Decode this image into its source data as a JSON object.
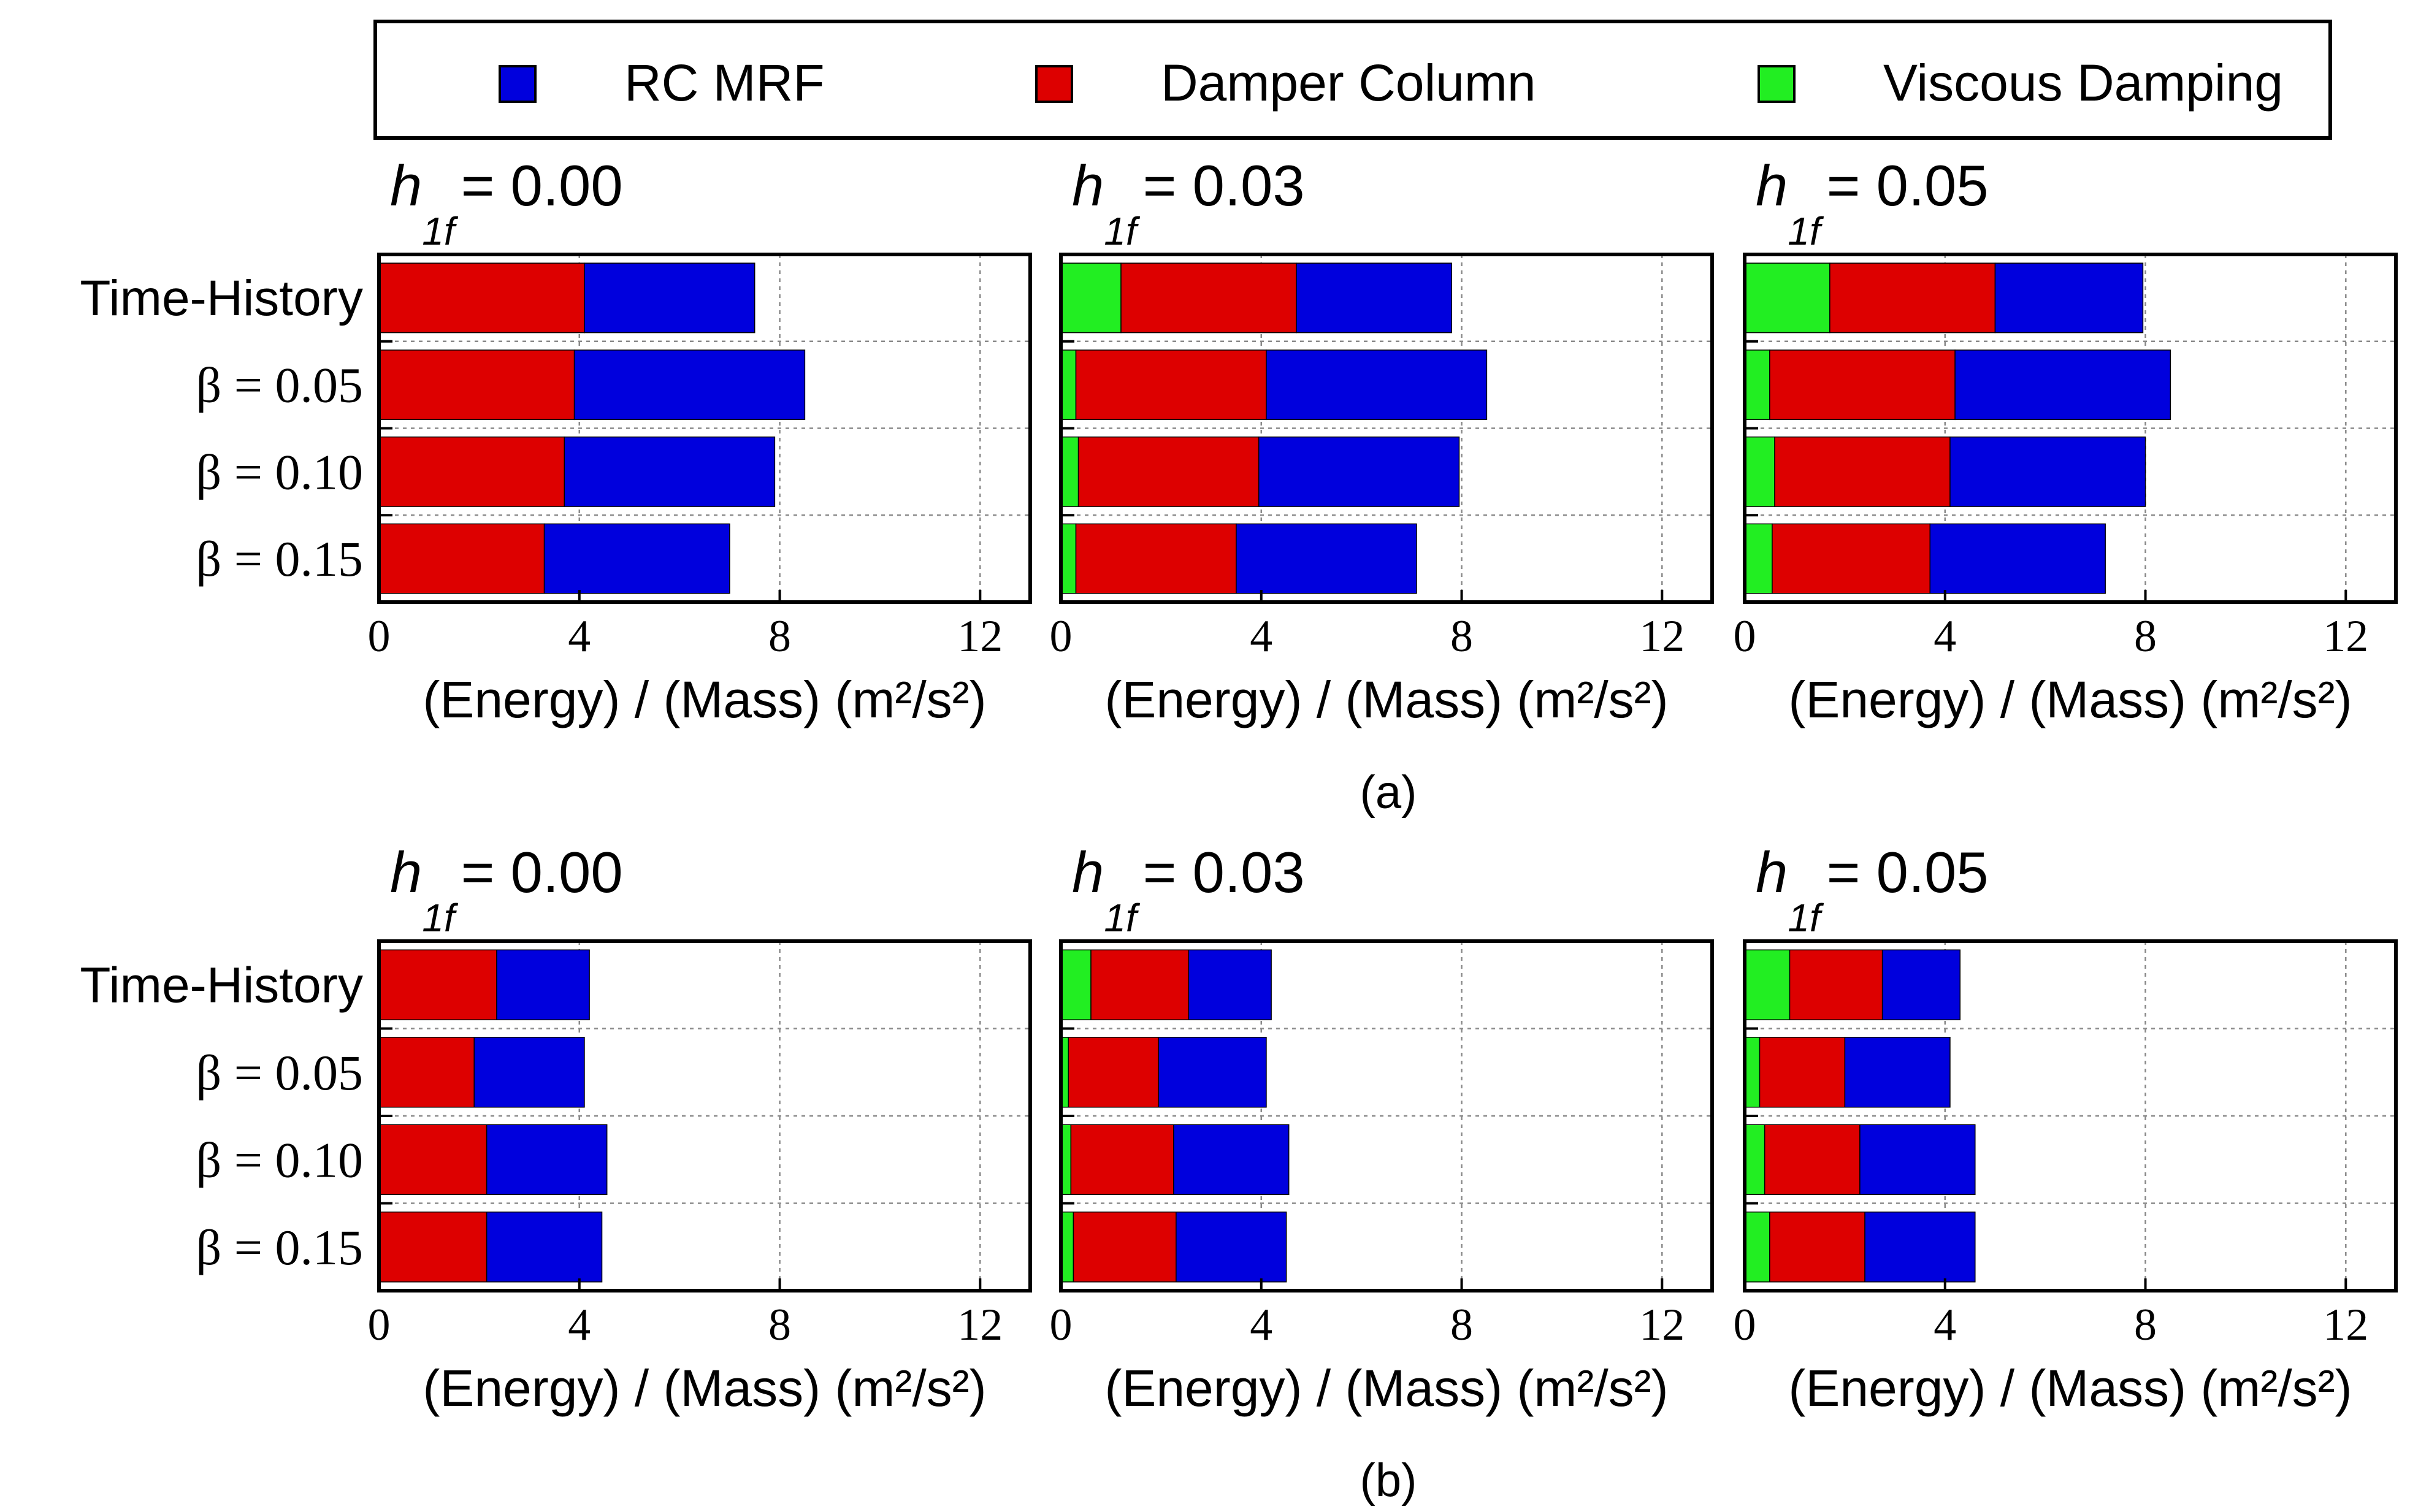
{
  "legend": {
    "items": [
      {
        "label": "RC MRF",
        "color": "#0000dd"
      },
      {
        "label": "Damper Column",
        "color": "#dd0000"
      },
      {
        "label": "Viscous Damping",
        "color": "#22ee22"
      }
    ]
  },
  "subfigures": [
    "(a)",
    "(b)"
  ],
  "chart_data": [
    {
      "type": "bar",
      "orientation": "horizontal",
      "stacked": true,
      "group": "(a)",
      "title": "h1f = 0.00",
      "title_symbol": "h",
      "title_subscript": "1f",
      "title_value": "= 0.00",
      "categories": [
        "Time-History",
        "β = 0.05",
        "β = 0.10",
        "β = 0.15"
      ],
      "series": [
        {
          "name": "Viscous Damping",
          "values": [
            0,
            0,
            0,
            0
          ]
        },
        {
          "name": "Damper Column",
          "values": [
            4.1,
            3.9,
            3.7,
            3.3
          ]
        },
        {
          "name": "RC MRF",
          "values": [
            3.4,
            4.6,
            4.2,
            3.7
          ]
        }
      ],
      "xlabel": "(Energy) / (Mass)",
      "xunit": "(m²/s²)",
      "xlim": [
        0,
        13
      ],
      "xticks": [
        "0",
        "4",
        "8",
        "12"
      ],
      "grid": true
    },
    {
      "type": "bar",
      "orientation": "horizontal",
      "stacked": true,
      "group": "(a)",
      "title": "h1f = 0.03",
      "title_symbol": "h",
      "title_subscript": "1f",
      "title_value": "= 0.03",
      "categories": [
        "Time-History",
        "β = 0.05",
        "β = 0.10",
        "β = 0.15"
      ],
      "series": [
        {
          "name": "Viscous Damping",
          "values": [
            1.2,
            0.3,
            0.35,
            0.3
          ]
        },
        {
          "name": "Damper Column",
          "values": [
            3.5,
            3.8,
            3.6,
            3.2
          ]
        },
        {
          "name": "RC MRF",
          "values": [
            3.1,
            4.4,
            4.0,
            3.6
          ]
        }
      ],
      "xlabel": "(Energy) / (Mass)",
      "xunit": "(m²/s²)",
      "xlim": [
        0,
        13
      ],
      "xticks": [
        "0",
        "4",
        "8",
        "12"
      ],
      "grid": true
    },
    {
      "type": "bar",
      "orientation": "horizontal",
      "stacked": true,
      "group": "(a)",
      "title": "h1f = 0.05",
      "title_symbol": "h",
      "title_subscript": "1f",
      "title_value": "= 0.05",
      "categories": [
        "Time-History",
        "β = 0.05",
        "β = 0.10",
        "β = 0.15"
      ],
      "series": [
        {
          "name": "Viscous Damping",
          "values": [
            1.7,
            0.5,
            0.6,
            0.55
          ]
        },
        {
          "name": "Damper Column",
          "values": [
            3.3,
            3.7,
            3.5,
            3.15
          ]
        },
        {
          "name": "RC MRF",
          "values": [
            2.95,
            4.3,
            3.9,
            3.5
          ]
        }
      ],
      "xlabel": "(Energy) / (Mass)",
      "xunit": "(m²/s²)",
      "xlim": [
        0,
        13
      ],
      "xticks": [
        "0",
        "4",
        "8",
        "12"
      ],
      "grid": true
    },
    {
      "type": "bar",
      "orientation": "horizontal",
      "stacked": true,
      "group": "(b)",
      "title": "h1f = 0.00",
      "title_symbol": "h",
      "title_subscript": "1f",
      "title_value": "= 0.00",
      "categories": [
        "Time-History",
        "β = 0.05",
        "β = 0.10",
        "β = 0.15"
      ],
      "series": [
        {
          "name": "Viscous Damping",
          "values": [
            0,
            0,
            0,
            0
          ]
        },
        {
          "name": "Damper Column",
          "values": [
            2.35,
            1.9,
            2.15,
            2.15
          ]
        },
        {
          "name": "RC MRF",
          "values": [
            1.85,
            2.2,
            2.4,
            2.3
          ]
        }
      ],
      "xlabel": "(Energy) / (Mass)",
      "xunit": "(m²/s²)",
      "xlim": [
        0,
        13
      ],
      "xticks": [
        "0",
        "4",
        "8",
        "12"
      ],
      "grid": true
    },
    {
      "type": "bar",
      "orientation": "horizontal",
      "stacked": true,
      "group": "(b)",
      "title": "h1f = 0.03",
      "title_symbol": "h",
      "title_subscript": "1f",
      "title_value": "= 0.03",
      "categories": [
        "Time-History",
        "β = 0.05",
        "β = 0.10",
        "β = 0.15"
      ],
      "series": [
        {
          "name": "Viscous Damping",
          "values": [
            0.6,
            0.15,
            0.2,
            0.25
          ]
        },
        {
          "name": "Damper Column",
          "values": [
            1.95,
            1.8,
            2.05,
            2.05
          ]
        },
        {
          "name": "RC MRF",
          "values": [
            1.65,
            2.15,
            2.3,
            2.2
          ]
        }
      ],
      "xlabel": "(Energy) / (Mass)",
      "xunit": "(m²/s²)",
      "xlim": [
        0,
        13
      ],
      "xticks": [
        "0",
        "4",
        "8",
        "12"
      ],
      "grid": true
    },
    {
      "type": "bar",
      "orientation": "horizontal",
      "stacked": true,
      "group": "(b)",
      "title": "h1f = 0.05",
      "title_symbol": "h",
      "title_subscript": "1f",
      "title_value": "= 0.05",
      "categories": [
        "Time-History",
        "β = 0.05",
        "β = 0.10",
        "β = 0.15"
      ],
      "series": [
        {
          "name": "Viscous Damping",
          "values": [
            0.9,
            0.3,
            0.4,
            0.5
          ]
        },
        {
          "name": "Damper Column",
          "values": [
            1.85,
            1.7,
            1.9,
            1.9
          ]
        },
        {
          "name": "RC MRF",
          "values": [
            1.55,
            2.1,
            2.3,
            2.2
          ]
        }
      ],
      "xlabel": "(Energy) / (Mass)",
      "xunit": "(m²/s²)",
      "xlim": [
        0,
        13
      ],
      "xticks": [
        "0",
        "4",
        "8",
        "12"
      ],
      "grid": true
    }
  ]
}
